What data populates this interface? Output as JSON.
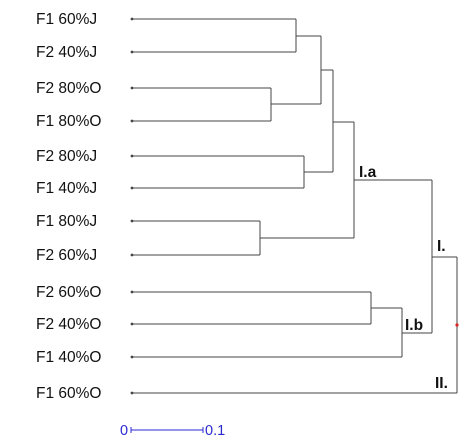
{
  "leaves": [
    {
      "label": "F1 60%J"
    },
    {
      "label": "F2 40%J"
    },
    {
      "label": "F2 80%O"
    },
    {
      "label": "F1 80%O"
    },
    {
      "label": "F2 80%J"
    },
    {
      "label": "F1 40%J"
    },
    {
      "label": "F1 80%J"
    },
    {
      "label": "F2 60%J"
    },
    {
      "label": "F2 60%O"
    },
    {
      "label": "F2 40%O"
    },
    {
      "label": "F1 40%O"
    },
    {
      "label": "F1 60%O"
    }
  ],
  "clade_labels": {
    "ia": "I.a",
    "ib": "I.b",
    "i": "I.",
    "ii": "II."
  },
  "scale_bar": {
    "start_label": "0",
    "end_label": "0.1"
  },
  "colors": {
    "branch": "#444444",
    "scale": "#2a2ad0",
    "root_marker": "#e02020"
  }
}
